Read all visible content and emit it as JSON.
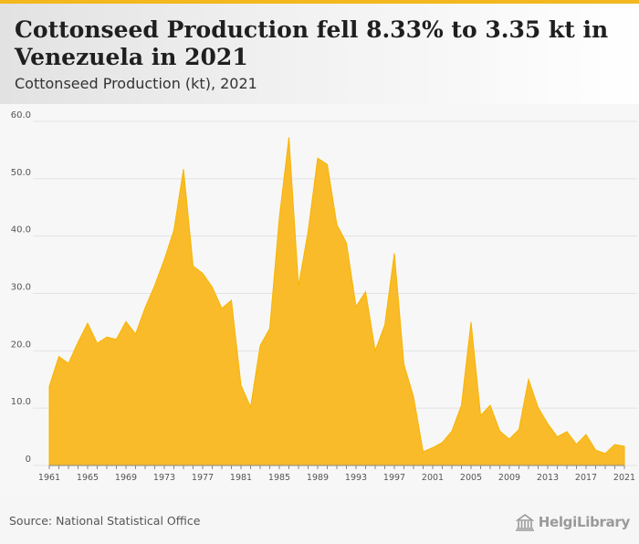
{
  "header": {
    "title": "Cottonseed Production fell 8.33% to 3.35 kt in Venezuela in 2021",
    "subtitle": "Cottonseed Production (kt), 2021"
  },
  "footer": {
    "source": "Source: National Statistical Office",
    "logo_text": "HelgiLibrary"
  },
  "colors": {
    "area": "#f7b500",
    "grid": "#e3e3e3",
    "axis": "#888888",
    "accent": "#f3b81f"
  },
  "chart_data": {
    "type": "area",
    "x": [
      1961,
      1962,
      1963,
      1964,
      1965,
      1966,
      1967,
      1968,
      1969,
      1970,
      1971,
      1972,
      1973,
      1974,
      1975,
      1976,
      1977,
      1978,
      1979,
      1980,
      1981,
      1982,
      1983,
      1984,
      1985,
      1986,
      1987,
      1988,
      1989,
      1990,
      1991,
      1992,
      1993,
      1994,
      1995,
      1996,
      1997,
      1998,
      1999,
      2000,
      2001,
      2002,
      2003,
      2004,
      2005,
      2006,
      2007,
      2008,
      2009,
      2010,
      2011,
      2012,
      2013,
      2014,
      2015,
      2016,
      2017,
      2018,
      2019,
      2020,
      2021
    ],
    "values": [
      13.8,
      19.0,
      17.8,
      21.5,
      24.8,
      21.3,
      22.4,
      22.0,
      25.1,
      22.9,
      27.5,
      31.4,
      35.9,
      41.0,
      51.7,
      34.8,
      33.5,
      31.1,
      27.4,
      28.8,
      14.0,
      10.2,
      20.9,
      23.9,
      43.2,
      57.2,
      31.3,
      40.8,
      53.6,
      52.5,
      42.0,
      38.8,
      27.7,
      30.3,
      20.0,
      24.5,
      37.0,
      17.6,
      12.0,
      2.4,
      3.1,
      4.0,
      6.0,
      10.5,
      25.0,
      8.7,
      10.5,
      6.0,
      4.6,
      6.3,
      15.0,
      10.1,
      7.3,
      5.0,
      5.9,
      3.7,
      5.4,
      2.7,
      2.1,
      3.65,
      3.35
    ],
    "x_ticks": [
      "1961",
      "1965",
      "1969",
      "1973",
      "1977",
      "1981",
      "1985",
      "1989",
      "1993",
      "1997",
      "2001",
      "2005",
      "2009",
      "2013",
      "2017",
      "2021"
    ],
    "y_ticks": [
      "0",
      "10.0",
      "20.0",
      "30.0",
      "40.0",
      "50.0",
      "60.0"
    ],
    "ylim": [
      0,
      60
    ],
    "xlim": [
      1961,
      2021
    ],
    "grid": true,
    "legend": "none"
  }
}
